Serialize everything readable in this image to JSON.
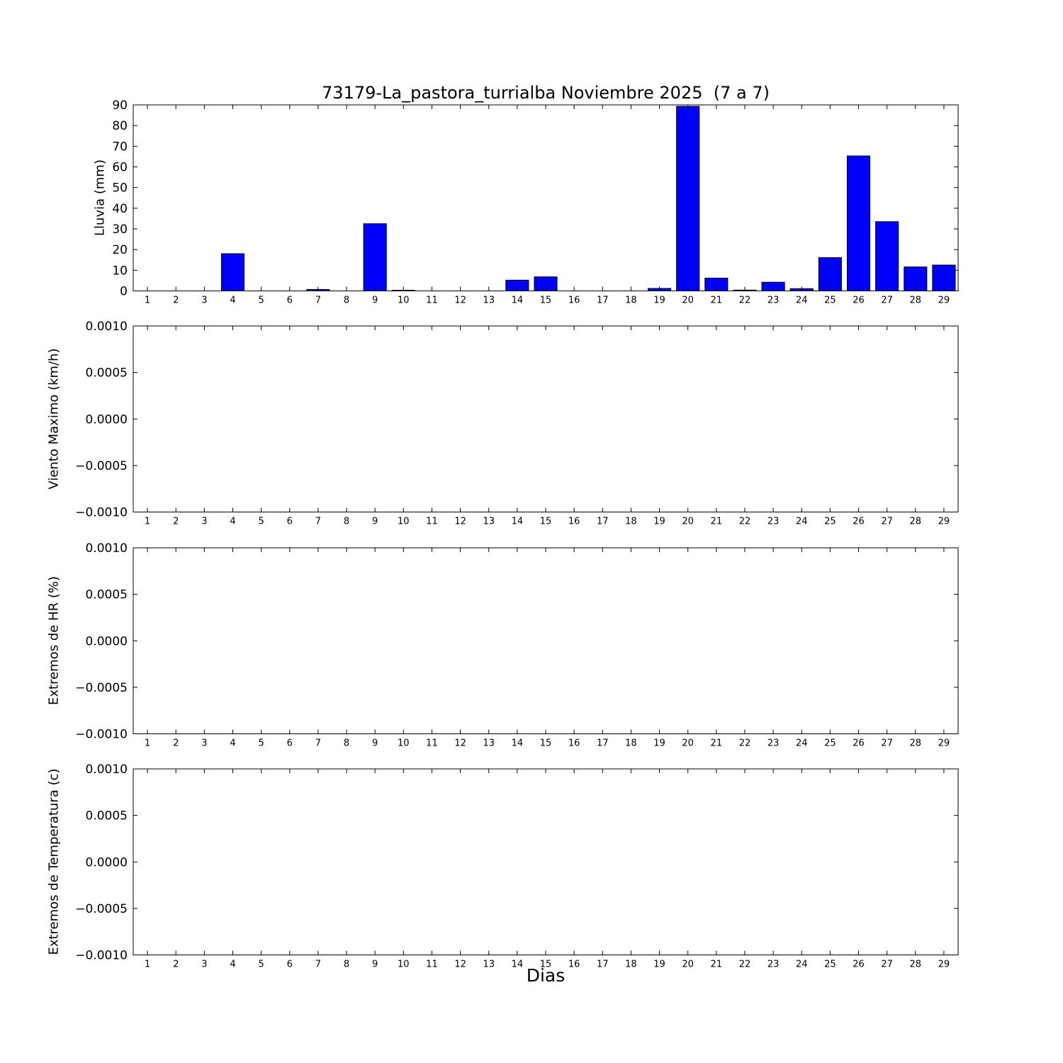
{
  "figure": {
    "background_color": "#ffffff",
    "axis_color": "#000000",
    "bar_color": "#0000ff",
    "bar_edge_color": "#000000"
  },
  "chart_data": [
    {
      "type": "bar",
      "title": "73179-La_pastora_turrialba Noviembre 2025  (7 a 7)",
      "ylabel": "Lluvia (mm)",
      "xlabel": "",
      "ylim": [
        0,
        90
      ],
      "yticks": [
        0,
        10,
        20,
        30,
        40,
        50,
        60,
        70,
        80,
        90
      ],
      "ytick_labels": [
        "0",
        "10",
        "20",
        "30",
        "40",
        "50",
        "60",
        "70",
        "80",
        "90"
      ],
      "xlim": [
        0.5,
        29.5
      ],
      "categories": [
        1,
        2,
        3,
        4,
        5,
        6,
        7,
        8,
        9,
        10,
        11,
        12,
        13,
        14,
        15,
        16,
        17,
        18,
        19,
        20,
        21,
        22,
        23,
        24,
        25,
        26,
        27,
        28,
        29
      ],
      "xtick_labels": [
        "1",
        "2",
        "3",
        "4",
        "5",
        "6",
        "7",
        "8",
        "9",
        "10",
        "11",
        "12",
        "13",
        "14",
        "15",
        "16",
        "17",
        "18",
        "19",
        "20",
        "21",
        "22",
        "23",
        "24",
        "25",
        "26",
        "27",
        "28",
        "29"
      ],
      "values": [
        0,
        0,
        0,
        18,
        0,
        0,
        0.7,
        0,
        32.5,
        0.3,
        0,
        0,
        0,
        5.2,
        6.8,
        0,
        0,
        0,
        1.2,
        89.3,
        6.2,
        0.4,
        4.2,
        1.1,
        16.1,
        65.3,
        33.5,
        11.6,
        12.5
      ],
      "bar_width": 0.8,
      "bar_color": "#0000ff",
      "grid": false,
      "legend": false
    },
    {
      "type": "bar",
      "title": "",
      "ylabel": "Viento Maximo (km/h)",
      "xlabel": "",
      "ylim": [
        -0.001,
        0.001
      ],
      "yticks": [
        -0.001,
        -0.0005,
        0,
        0.0005,
        0.001
      ],
      "ytick_labels": [
        "−0.0010",
        "−0.0005",
        "0.0000",
        "0.0005",
        "0.0010"
      ],
      "xlim": [
        0.5,
        29.5
      ],
      "categories": [
        1,
        2,
        3,
        4,
        5,
        6,
        7,
        8,
        9,
        10,
        11,
        12,
        13,
        14,
        15,
        16,
        17,
        18,
        19,
        20,
        21,
        22,
        23,
        24,
        25,
        26,
        27,
        28,
        29
      ],
      "xtick_labels": [
        "1",
        "2",
        "3",
        "4",
        "5",
        "6",
        "7",
        "8",
        "9",
        "10",
        "11",
        "12",
        "13",
        "14",
        "15",
        "16",
        "17",
        "18",
        "19",
        "20",
        "21",
        "22",
        "23",
        "24",
        "25",
        "26",
        "27",
        "28",
        "29"
      ],
      "values": [],
      "bar_width": 0.8,
      "bar_color": "#0000ff",
      "grid": false,
      "legend": false
    },
    {
      "type": "bar",
      "title": "",
      "ylabel": "Extremos de HR (%)",
      "xlabel": "",
      "ylim": [
        -0.001,
        0.001
      ],
      "yticks": [
        -0.001,
        -0.0005,
        0,
        0.0005,
        0.001
      ],
      "ytick_labels": [
        "−0.0010",
        "−0.0005",
        "0.0000",
        "0.0005",
        "0.0010"
      ],
      "xlim": [
        0.5,
        29.5
      ],
      "categories": [
        1,
        2,
        3,
        4,
        5,
        6,
        7,
        8,
        9,
        10,
        11,
        12,
        13,
        14,
        15,
        16,
        17,
        18,
        19,
        20,
        21,
        22,
        23,
        24,
        25,
        26,
        27,
        28,
        29
      ],
      "xtick_labels": [
        "1",
        "2",
        "3",
        "4",
        "5",
        "6",
        "7",
        "8",
        "9",
        "10",
        "11",
        "12",
        "13",
        "14",
        "15",
        "16",
        "17",
        "18",
        "19",
        "20",
        "21",
        "22",
        "23",
        "24",
        "25",
        "26",
        "27",
        "28",
        "29"
      ],
      "values": [],
      "bar_width": 0.8,
      "bar_color": "#0000ff",
      "grid": false,
      "legend": false
    },
    {
      "type": "bar",
      "title": "",
      "ylabel": "Extremos de Temperatura (c)",
      "xlabel": "Dias",
      "ylim": [
        -0.001,
        0.001
      ],
      "yticks": [
        -0.001,
        -0.0005,
        0,
        0.0005,
        0.001
      ],
      "ytick_labels": [
        "−0.0010",
        "−0.0005",
        "0.0000",
        "0.0005",
        "0.0010"
      ],
      "xlim": [
        0.5,
        29.5
      ],
      "categories": [
        1,
        2,
        3,
        4,
        5,
        6,
        7,
        8,
        9,
        10,
        11,
        12,
        13,
        14,
        15,
        16,
        17,
        18,
        19,
        20,
        21,
        22,
        23,
        24,
        25,
        26,
        27,
        28,
        29
      ],
      "xtick_labels": [
        "1",
        "2",
        "3",
        "4",
        "5",
        "6",
        "7",
        "8",
        "9",
        "10",
        "11",
        "12",
        "13",
        "14",
        "15",
        "16",
        "17",
        "18",
        "19",
        "20",
        "21",
        "22",
        "23",
        "24",
        "25",
        "26",
        "27",
        "28",
        "29"
      ],
      "values": [],
      "bar_width": 0.8,
      "bar_color": "#0000ff",
      "grid": false,
      "legend": false
    }
  ]
}
